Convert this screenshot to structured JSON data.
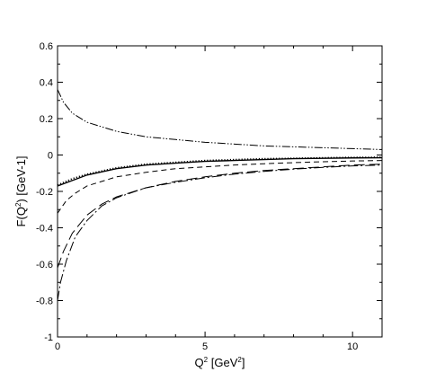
{
  "chart_data": {
    "type": "line",
    "xlabel": {
      "base": "Q",
      "sup1": "2",
      "mid": " [GeV",
      "sup2": "2",
      "end": "]"
    },
    "ylabel": {
      "base": "F(Q",
      "sup1": "2",
      "end": ") [GeV-1]"
    },
    "xlim": [
      0,
      11
    ],
    "ylim": [
      -1,
      0.6
    ],
    "xticks": [
      0,
      5,
      10
    ],
    "yticks": [
      -1,
      -0.8,
      -0.6,
      -0.4,
      -0.2,
      0,
      0.2,
      0.4,
      0.6
    ],
    "xtick_labels": [
      "0",
      "5",
      "10"
    ],
    "ytick_labels": [
      "-1",
      "-0.8",
      "-0.6",
      "-0.4",
      "-0.2",
      "0",
      "0.2",
      "0.4",
      "0.6"
    ],
    "grid": false,
    "series": [
      {
        "style": "dashdotdot",
        "x": [
          0,
          0.2,
          0.5,
          1,
          2,
          3,
          4,
          5,
          6,
          7,
          8,
          9,
          10,
          11
        ],
        "y": [
          0.36,
          0.29,
          0.23,
          0.18,
          0.13,
          0.1,
          0.085,
          0.07,
          0.06,
          0.05,
          0.045,
          0.04,
          0.035,
          0.03
        ]
      },
      {
        "style": "solid",
        "x": [
          0,
          0.5,
          1,
          2,
          3,
          4,
          5,
          6,
          7,
          8,
          9,
          10,
          11
        ],
        "y": [
          -0.17,
          -0.14,
          -0.11,
          -0.075,
          -0.055,
          -0.045,
          -0.035,
          -0.03,
          -0.025,
          -0.02,
          -0.018,
          -0.016,
          -0.015
        ]
      },
      {
        "style": "dotted",
        "x": [
          0,
          0.5,
          1,
          2,
          3,
          4,
          5,
          6,
          7,
          8,
          9,
          10,
          11
        ],
        "y": [
          -0.165,
          -0.13,
          -0.105,
          -0.07,
          -0.05,
          -0.04,
          -0.03,
          -0.025,
          -0.02,
          -0.018,
          -0.015,
          -0.013,
          -0.012
        ]
      },
      {
        "style": "shortdash",
        "x": [
          0,
          0.3,
          0.6,
          1,
          2,
          3,
          4,
          5,
          6,
          7,
          8,
          9,
          10,
          11
        ],
        "y": [
          -0.32,
          -0.25,
          -0.21,
          -0.17,
          -0.12,
          -0.095,
          -0.075,
          -0.065,
          -0.055,
          -0.048,
          -0.042,
          -0.037,
          -0.033,
          -0.03
        ]
      },
      {
        "style": "longdash",
        "x": [
          0,
          0.2,
          0.5,
          1,
          1.5,
          2,
          3,
          4,
          5,
          6,
          7,
          8,
          9,
          10,
          11
        ],
        "y": [
          -0.62,
          -0.53,
          -0.43,
          -0.33,
          -0.27,
          -0.23,
          -0.18,
          -0.145,
          -0.12,
          -0.1,
          -0.085,
          -0.075,
          -0.065,
          -0.055,
          -0.05
        ]
      },
      {
        "style": "dashdot",
        "x": [
          0,
          0.1,
          0.3,
          0.6,
          1,
          1.5,
          2,
          3,
          4,
          5,
          6,
          7,
          8,
          9,
          10,
          11
        ],
        "y": [
          -0.8,
          -0.7,
          -0.58,
          -0.45,
          -0.36,
          -0.28,
          -0.235,
          -0.18,
          -0.15,
          -0.125,
          -0.105,
          -0.09,
          -0.078,
          -0.068,
          -0.06,
          -0.055
        ]
      }
    ]
  }
}
